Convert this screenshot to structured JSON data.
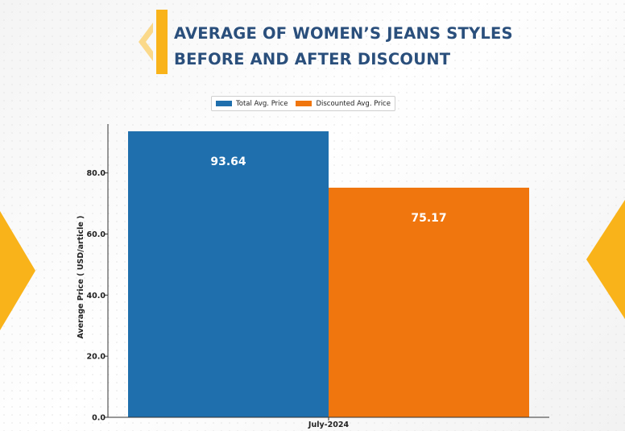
{
  "title": {
    "line1": "AVERAGE OF WOMEN’S JEANS STYLES",
    "line2": "BEFORE AND AFTER DISCOUNT"
  },
  "colors": {
    "accent": "#f9b31a",
    "title": "#2a4f7c",
    "series_total": "#1f6fad",
    "series_discounted": "#f0760e"
  },
  "chart_data": {
    "type": "bar",
    "categories": [
      "July-2024"
    ],
    "series": [
      {
        "name": "Total Avg. Price",
        "values": [
          93.64
        ],
        "label": "93.64",
        "color": "#1f6fad"
      },
      {
        "name": "Discounted Avg. Price",
        "values": [
          75.17
        ],
        "label": "75.17",
        "color": "#f0760e"
      }
    ],
    "xlabel": "",
    "ylabel": "Average Price ( USD/article )",
    "ylim": [
      0,
      96
    ],
    "yticks": [
      0,
      20,
      40,
      60,
      80
    ],
    "ytick_labels": [
      "0.0",
      "20.0",
      "40.0",
      "60.0",
      "80.0"
    ],
    "grid": false,
    "legend": "top-center"
  }
}
